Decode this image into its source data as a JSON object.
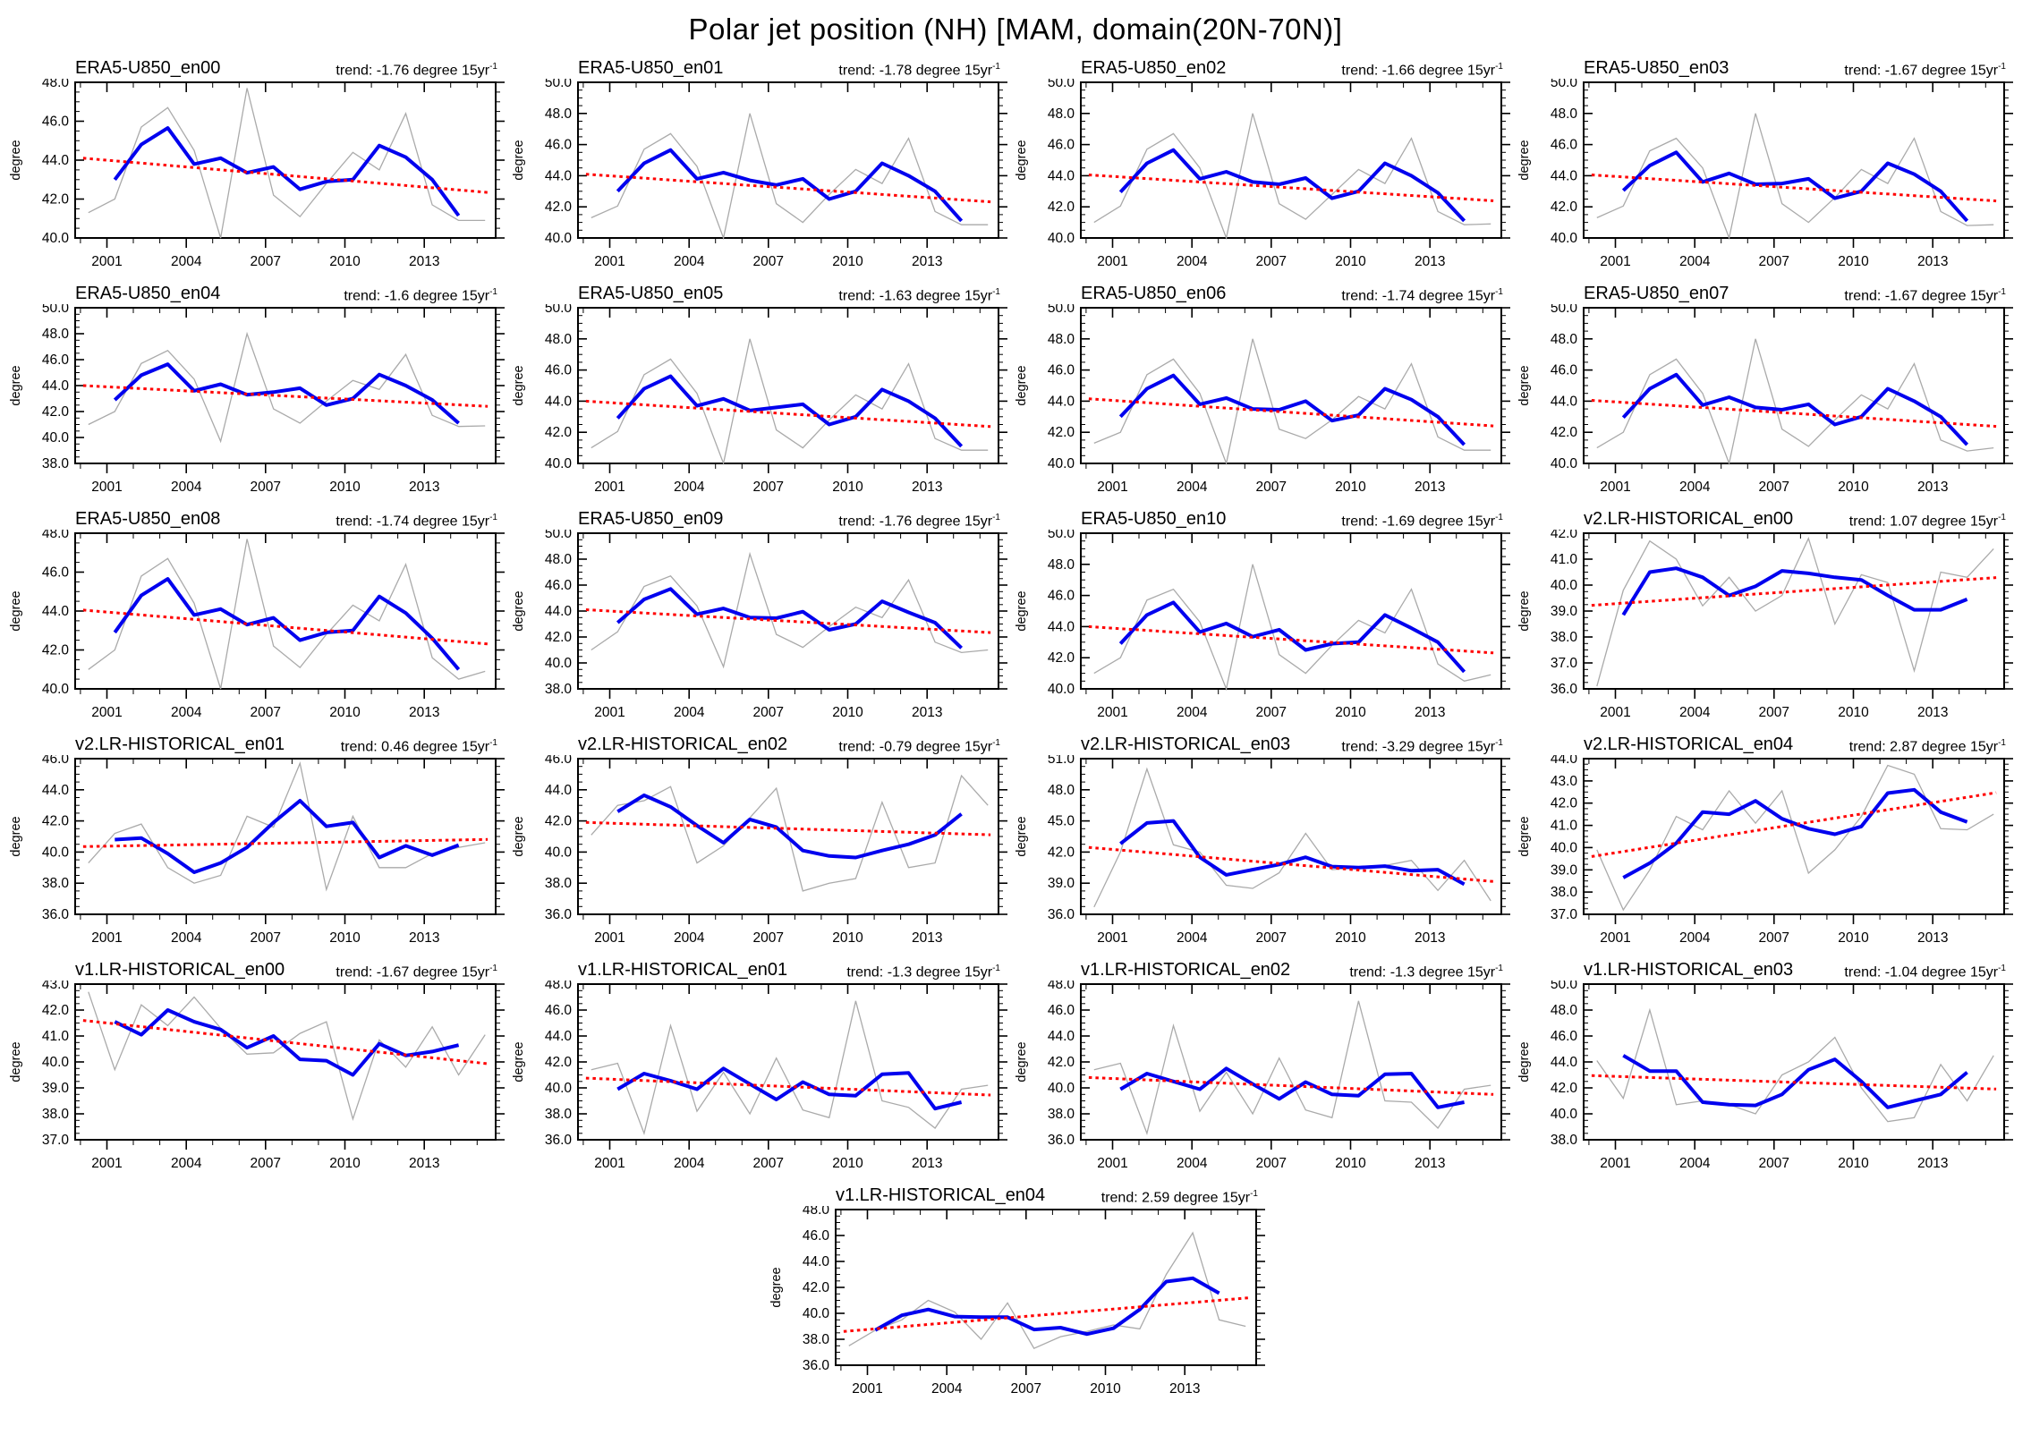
{
  "header": {
    "title": "Polar jet position (NH) [MAM, domain(20N-70N)]"
  },
  "colors": {
    "annual_line": "#aaaaaa",
    "smoothed_line": "#0000ee",
    "trend_line": "#ff0000",
    "axis": "#000000",
    "background": "#ffffff"
  },
  "chart_data": {
    "type": "line",
    "ylabel": "degree",
    "x_annual": [
      2000,
      2001,
      2002,
      2003,
      2004,
      2005,
      2006,
      2007,
      2008,
      2009,
      2010,
      2011,
      2012,
      2013,
      2014,
      2015
    ],
    "x_smoothed": [
      2001,
      2002,
      2003,
      2004,
      2005,
      2006,
      2007,
      2008,
      2009,
      2010,
      2011,
      2012,
      2013,
      2014
    ],
    "x_tick_labels": [
      2001,
      2004,
      2007,
      2010,
      2013
    ],
    "xlim": [
      1999.8,
      2015.7
    ],
    "layout": {
      "columns": 4,
      "rows": 6,
      "last_row_centered": true,
      "grid": false,
      "legend": "none"
    },
    "panels": [
      {
        "title": "ERA5-U850_en00",
        "trend": "trend: -1.76 degree 15yr",
        "trend_sup": "-1",
        "trend_value": -1.76,
        "ylim": [
          40,
          48
        ],
        "ystep": 2,
        "annual": [
          41.3,
          42.0,
          45.7,
          46.7,
          44.5,
          40.0,
          47.7,
          42.2,
          41.1,
          42.8,
          44.4,
          43.5,
          46.4,
          41.7,
          40.9,
          40.9
        ],
        "smoothed": [
          43.0,
          44.8,
          45.65,
          43.8,
          44.1,
          43.35,
          43.65,
          42.5,
          42.9,
          43.0,
          44.75,
          44.15,
          43.0,
          41.15
        ],
        "trend_line": [
          44.1,
          42.34
        ]
      },
      {
        "title": "ERA5-U850_en01",
        "trend": "trend: -1.78 degree 15yr",
        "trend_sup": "-1",
        "trend_value": -1.78,
        "ylim": [
          40,
          50
        ],
        "ystep": 2,
        "annual": [
          41.3,
          42.05,
          45.7,
          46.7,
          44.6,
          40.0,
          48.0,
          42.2,
          41.0,
          42.8,
          44.4,
          43.5,
          46.4,
          41.7,
          40.85,
          40.85
        ],
        "smoothed": [
          43.0,
          44.8,
          45.65,
          43.8,
          44.2,
          43.7,
          43.4,
          43.8,
          42.5,
          43.0,
          44.8,
          44.0,
          43.0,
          41.1
        ],
        "trend_line": [
          44.1,
          42.32
        ]
      },
      {
        "title": "ERA5-U850_en02",
        "trend": "trend: -1.66 degree 15yr",
        "trend_sup": "-1",
        "trend_value": -1.66,
        "ylim": [
          40,
          50
        ],
        "ystep": 2,
        "annual": [
          41.0,
          42.05,
          45.7,
          46.7,
          44.5,
          40.0,
          48.0,
          42.2,
          41.2,
          42.8,
          44.4,
          43.5,
          46.4,
          41.7,
          40.85,
          40.9
        ],
        "smoothed": [
          42.95,
          44.8,
          45.65,
          43.8,
          44.25,
          43.6,
          43.45,
          43.85,
          42.55,
          43.0,
          44.8,
          44.0,
          42.9,
          41.1
        ],
        "trend_line": [
          44.05,
          42.39
        ]
      },
      {
        "title": "ERA5-U850_en03",
        "trend": "trend: -1.67 degree 15yr",
        "trend_sup": "-1",
        "trend_value": -1.67,
        "ylim": [
          40,
          50
        ],
        "ystep": 2,
        "annual": [
          41.3,
          42.05,
          45.6,
          46.4,
          44.5,
          40.0,
          48.0,
          42.2,
          41.0,
          42.6,
          44.4,
          43.5,
          46.4,
          41.7,
          40.8,
          40.85
        ],
        "smoothed": [
          43.05,
          44.65,
          45.5,
          43.6,
          44.15,
          43.45,
          43.5,
          43.8,
          42.55,
          43.0,
          44.8,
          44.1,
          43.0,
          41.1
        ],
        "trend_line": [
          44.05,
          42.38
        ]
      },
      {
        "title": "ERA5-U850_en04",
        "trend": "trend: -1.6 degree 15yr",
        "trend_sup": "-1",
        "trend_value": -1.6,
        "ylim": [
          38,
          50
        ],
        "ystep": 2,
        "annual": [
          41.0,
          42.0,
          45.7,
          46.7,
          44.5,
          39.7,
          48.0,
          42.2,
          41.1,
          42.8,
          44.4,
          43.7,
          46.4,
          41.7,
          40.85,
          40.9
        ],
        "smoothed": [
          42.9,
          44.8,
          45.65,
          43.6,
          44.1,
          43.3,
          43.5,
          43.8,
          42.5,
          43.0,
          44.85,
          44.0,
          42.9,
          41.1
        ],
        "trend_line": [
          44.0,
          42.4
        ]
      },
      {
        "title": "ERA5-U850_en05",
        "trend": "trend: -1.63 degree 15yr",
        "trend_sup": "-1",
        "trend_value": -1.63,
        "ylim": [
          40,
          50
        ],
        "ystep": 2,
        "annual": [
          41.0,
          42.05,
          45.7,
          46.7,
          44.5,
          40.0,
          48.0,
          42.15,
          41.0,
          42.8,
          44.4,
          43.5,
          46.4,
          41.6,
          40.85,
          40.85
        ],
        "smoothed": [
          42.9,
          44.8,
          45.6,
          43.7,
          44.15,
          43.4,
          43.6,
          43.8,
          42.5,
          43.0,
          44.75,
          44.0,
          42.9,
          41.1
        ],
        "trend_line": [
          44.0,
          42.37
        ]
      },
      {
        "title": "ERA5-U850_en06",
        "trend": "trend: -1.74 degree 15yr",
        "trend_sup": "-1",
        "trend_value": -1.74,
        "ylim": [
          40,
          50
        ],
        "ystep": 2,
        "annual": [
          41.3,
          42.0,
          45.7,
          46.7,
          44.5,
          40.0,
          48.0,
          42.2,
          41.6,
          42.8,
          44.3,
          43.5,
          46.4,
          41.7,
          40.85,
          40.85
        ],
        "smoothed": [
          43.0,
          44.8,
          45.65,
          43.8,
          44.2,
          43.5,
          43.45,
          44.0,
          42.75,
          43.1,
          44.8,
          44.1,
          43.0,
          41.2
        ],
        "trend_line": [
          44.15,
          42.41
        ]
      },
      {
        "title": "ERA5-U850_en07",
        "trend": "trend: -1.67 degree 15yr",
        "trend_sup": "-1",
        "trend_value": -1.67,
        "ylim": [
          40,
          50
        ],
        "ystep": 2,
        "annual": [
          41.0,
          42.0,
          45.7,
          46.7,
          44.5,
          40.0,
          48.0,
          42.2,
          41.1,
          42.8,
          44.4,
          43.5,
          46.4,
          41.5,
          40.8,
          41.0
        ],
        "smoothed": [
          42.95,
          44.8,
          45.7,
          43.75,
          44.25,
          43.6,
          43.45,
          43.8,
          42.5,
          43.0,
          44.8,
          44.0,
          43.0,
          41.2
        ],
        "trend_line": [
          44.05,
          42.38
        ]
      },
      {
        "title": "ERA5-U850_en08",
        "trend": "trend: -1.74 degree 15yr",
        "trend_sup": "-1",
        "trend_value": -1.74,
        "ylim": [
          40,
          48
        ],
        "ystep": 2,
        "annual": [
          41.0,
          42.0,
          45.8,
          46.7,
          44.4,
          40.0,
          47.7,
          42.2,
          41.1,
          42.8,
          44.3,
          43.5,
          46.4,
          41.6,
          40.5,
          40.9
        ],
        "smoothed": [
          42.9,
          44.8,
          45.65,
          43.8,
          44.1,
          43.3,
          43.65,
          42.5,
          42.9,
          43.0,
          44.75,
          43.9,
          42.6,
          41.0
        ],
        "trend_line": [
          44.05,
          42.31
        ]
      },
      {
        "title": "ERA5-U850_en09",
        "trend": "trend: -1.76 degree 15yr",
        "trend_sup": "-1",
        "trend_value": -1.76,
        "ylim": [
          38,
          50
        ],
        "ystep": 2,
        "annual": [
          41.0,
          42.4,
          45.9,
          46.7,
          44.4,
          39.7,
          48.4,
          42.2,
          41.2,
          42.8,
          44.3,
          43.5,
          46.4,
          41.6,
          40.8,
          41.0
        ],
        "smoothed": [
          43.1,
          44.9,
          45.7,
          43.75,
          44.2,
          43.5,
          43.45,
          43.95,
          42.55,
          43.0,
          44.75,
          43.9,
          43.1,
          41.15
        ],
        "trend_line": [
          44.1,
          42.34
        ]
      },
      {
        "title": "ERA5-U850_en10",
        "trend": "trend: -1.69 degree 15yr",
        "trend_sup": "-1",
        "trend_value": -1.69,
        "ylim": [
          40,
          50
        ],
        "ystep": 2,
        "annual": [
          41.0,
          42.0,
          45.7,
          46.4,
          44.3,
          40.0,
          48.0,
          42.2,
          41.0,
          42.8,
          44.4,
          43.6,
          46.4,
          41.6,
          40.5,
          40.9
        ],
        "smoothed": [
          42.9,
          44.75,
          45.55,
          43.65,
          44.2,
          43.35,
          43.8,
          42.5,
          42.9,
          43.0,
          44.75,
          43.9,
          43.0,
          41.1
        ],
        "trend_line": [
          44.0,
          42.31
        ]
      },
      {
        "title": "v2.LR-HISTORICAL_en00",
        "trend": "trend: 1.07 degree 15yr",
        "trend_sup": "-1",
        "trend_value": 1.07,
        "ylim": [
          36,
          42
        ],
        "ystep": 1,
        "annual": [
          36.1,
          39.8,
          41.7,
          41.0,
          39.2,
          40.3,
          39.0,
          39.6,
          41.8,
          38.5,
          40.4,
          40.1,
          36.7,
          40.5,
          40.3,
          41.4
        ],
        "smoothed": [
          38.85,
          40.5,
          40.65,
          40.3,
          39.6,
          39.95,
          40.55,
          40.45,
          40.3,
          40.2,
          39.6,
          39.05,
          39.05,
          39.45
        ],
        "trend_line": [
          39.22,
          40.29
        ]
      },
      {
        "title": "v2.LR-HISTORICAL_en01",
        "trend": "trend: 0.46 degree 15yr",
        "trend_sup": "-1",
        "trend_value": 0.46,
        "ylim": [
          36,
          46
        ],
        "ystep": 2,
        "annual": [
          39.3,
          41.2,
          41.8,
          39.0,
          38.0,
          38.5,
          42.3,
          41.6,
          45.7,
          37.6,
          42.3,
          39.0,
          39.0,
          39.9,
          40.3,
          40.6
        ],
        "smoothed": [
          40.8,
          40.9,
          39.9,
          38.7,
          39.3,
          40.3,
          41.9,
          43.3,
          41.65,
          41.9,
          39.65,
          40.4,
          39.8,
          40.45
        ],
        "trend_line": [
          40.35,
          40.81
        ]
      },
      {
        "title": "v2.LR-HISTORICAL_en02",
        "trend": "trend: -0.79 degree 15yr",
        "trend_sup": "-1",
        "trend_value": -0.79,
        "ylim": [
          36,
          46
        ],
        "ystep": 2,
        "annual": [
          41.1,
          43.0,
          43.3,
          44.2,
          39.3,
          40.4,
          42.2,
          44.1,
          37.5,
          38.0,
          38.3,
          43.2,
          39.0,
          39.3,
          44.9,
          43.0
        ],
        "smoothed": [
          42.6,
          43.65,
          42.9,
          41.7,
          40.6,
          42.1,
          41.6,
          40.1,
          39.75,
          39.65,
          40.1,
          40.5,
          41.1,
          42.45
        ],
        "trend_line": [
          41.9,
          41.11
        ]
      },
      {
        "title": "v2.LR-HISTORICAL_en03",
        "trend": "trend: -3.29 degree 15yr",
        "trend_sup": "-1",
        "trend_value": -3.29,
        "ylim": [
          36,
          51
        ],
        "ystep": 3,
        "annual": [
          36.7,
          42.0,
          50.0,
          42.7,
          42.0,
          38.8,
          38.5,
          40.0,
          43.8,
          40.3,
          40.5,
          40.7,
          41.2,
          38.3,
          41.2,
          37.3
        ],
        "smoothed": [
          42.8,
          44.8,
          45.0,
          41.5,
          39.8,
          40.3,
          40.8,
          41.5,
          40.6,
          40.5,
          40.65,
          40.2,
          40.3,
          38.9
        ],
        "trend_line": [
          42.45,
          39.16
        ]
      },
      {
        "title": "v2.LR-HISTORICAL_en04",
        "trend": "trend: 2.87 degree 15yr",
        "trend_sup": "-1",
        "trend_value": 2.87,
        "ylim": [
          37,
          44
        ],
        "ystep": 1,
        "annual": [
          39.9,
          37.2,
          39.0,
          41.4,
          40.8,
          42.55,
          41.1,
          42.55,
          38.85,
          39.9,
          41.4,
          43.7,
          43.3,
          40.85,
          40.8,
          41.5
        ],
        "smoothed": [
          38.65,
          39.3,
          40.2,
          41.6,
          41.5,
          42.1,
          41.3,
          40.85,
          40.6,
          40.95,
          42.45,
          42.6,
          41.6,
          41.15
        ],
        "trend_line": [
          39.6,
          42.47
        ]
      },
      {
        "title": "v1.LR-HISTORICAL_en00",
        "trend": "trend: -1.67 degree 15yr",
        "trend_sup": "-1",
        "trend_value": -1.67,
        "ylim": [
          37,
          43
        ],
        "ystep": 1,
        "annual": [
          42.7,
          39.7,
          42.2,
          41.4,
          42.5,
          41.3,
          40.3,
          40.35,
          41.1,
          41.55,
          37.8,
          40.85,
          39.8,
          41.35,
          39.5,
          41.05
        ],
        "smoothed": [
          41.55,
          41.05,
          42.0,
          41.55,
          41.25,
          40.55,
          41.0,
          40.1,
          40.05,
          39.5,
          40.7,
          40.25,
          40.4,
          40.65
        ],
        "trend_line": [
          41.6,
          39.93
        ]
      },
      {
        "title": "v1.LR-HISTORICAL_en01",
        "trend": "trend: -1.3 degree 15yr",
        "trend_sup": "-1",
        "trend_value": -1.3,
        "ylim": [
          36,
          48
        ],
        "ystep": 2,
        "annual": [
          41.4,
          41.9,
          36.5,
          44.8,
          38.2,
          41.2,
          38.0,
          42.3,
          38.3,
          37.7,
          46.7,
          39.0,
          38.5,
          36.9,
          39.9,
          40.2
        ],
        "smoothed": [
          39.9,
          41.1,
          40.55,
          39.9,
          41.5,
          40.3,
          39.1,
          40.45,
          39.5,
          39.4,
          41.05,
          41.15,
          38.4,
          38.9
        ],
        "trend_line": [
          40.75,
          39.45
        ]
      },
      {
        "title": "v1.LR-HISTORICAL_en02",
        "trend": "trend: -1.3 degree 15yr",
        "trend_sup": "-1",
        "trend_value": -1.3,
        "ylim": [
          36,
          48
        ],
        "ystep": 2,
        "annual": [
          41.4,
          41.9,
          36.5,
          44.8,
          38.2,
          41.2,
          38.0,
          42.3,
          38.3,
          37.7,
          46.7,
          39.0,
          38.9,
          36.9,
          39.9,
          40.2
        ],
        "smoothed": [
          39.9,
          41.1,
          40.5,
          39.9,
          41.5,
          40.3,
          39.15,
          40.45,
          39.5,
          39.4,
          41.05,
          41.1,
          38.5,
          38.9
        ],
        "trend_line": [
          40.8,
          39.5
        ]
      },
      {
        "title": "v1.LR-HISTORICAL_en03",
        "trend": "trend: -1.04 degree 15yr",
        "trend_sup": "-1",
        "trend_value": -1.04,
        "ylim": [
          38,
          50
        ],
        "ystep": 2,
        "annual": [
          44.1,
          41.2,
          48.0,
          40.7,
          41.0,
          40.7,
          40.0,
          43.0,
          44.0,
          45.9,
          42.0,
          39.4,
          39.7,
          43.8,
          41.0,
          44.5
        ],
        "smoothed": [
          44.5,
          43.3,
          43.3,
          40.9,
          40.7,
          40.65,
          41.5,
          43.4,
          44.2,
          42.5,
          40.5,
          41.0,
          41.5,
          43.2
        ],
        "trend_line": [
          42.95,
          41.91
        ]
      },
      {
        "title": "v1.LR-HISTORICAL_en04",
        "trend": "trend: 2.59 degree 15yr",
        "trend_sup": "-1",
        "trend_value": 2.59,
        "ylim": [
          36,
          48
        ],
        "ystep": 2,
        "annual": [
          37.5,
          38.7,
          39.5,
          41.0,
          40.1,
          38.0,
          40.8,
          37.3,
          38.2,
          38.6,
          39.1,
          38.8,
          43.0,
          46.2,
          39.5,
          39.0
        ],
        "smoothed": [
          38.7,
          39.85,
          40.3,
          39.75,
          39.7,
          39.7,
          38.75,
          38.9,
          38.4,
          38.85,
          40.3,
          42.45,
          42.7,
          41.55
        ],
        "trend_line": [
          38.6,
          41.19
        ]
      }
    ]
  }
}
